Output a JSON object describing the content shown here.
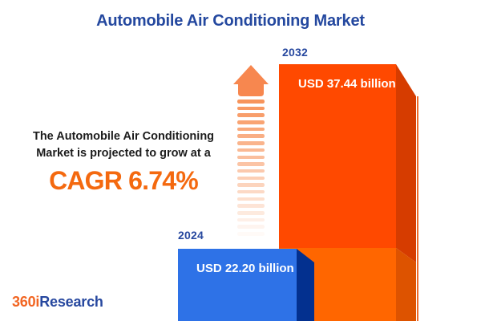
{
  "title": {
    "text": "Automobile Air Conditioning Market",
    "color": "#24489F"
  },
  "description": {
    "line1": "The Automobile Air Conditioning",
    "line2": "Market is projected to grow at a",
    "text_color": "#1C1C1C",
    "cagr_label": "CAGR 6.74%",
    "cagr_color": "#F4690F"
  },
  "arrow": {
    "head_color": "#F7874F",
    "stripe_color": "#F78E52",
    "stripe_count": 20
  },
  "chart_data": {
    "type": "bar",
    "title": "Automobile Air Conditioning Market",
    "categories": [
      "2024",
      "2032"
    ],
    "values": [
      22.2,
      37.44
    ],
    "unit": "USD billion",
    "value_labels": [
      "USD 22.20 billion",
      "USD 37.44 billion"
    ],
    "cagr_percent": 6.74,
    "legend": "none",
    "grid": false,
    "style": "3d-bars, values labeled inside bars, years labeled above bars"
  },
  "bars": [
    {
      "year": "2024",
      "value_label": "USD 22.20 billion",
      "front_color": "#2E72E7",
      "side_color": "#03308F",
      "label_color": "#27489F",
      "value_text_color": "#FFFFFF"
    },
    {
      "year": "2032",
      "value_label": "USD 37.44 billion",
      "front_color": "#FF4900",
      "front_color_overlap": "#FF6600",
      "side_color": "#D63C00",
      "side_color_overlap": "#DD5300",
      "edge_line_color": "#ED6B2B",
      "label_color": "#27489F",
      "value_text_color": "#FFFFFF"
    }
  ],
  "logo": {
    "prefix": "360i",
    "suffix": "Research",
    "prefix_color": "#F26522",
    "suffix_color": "#27489F"
  }
}
